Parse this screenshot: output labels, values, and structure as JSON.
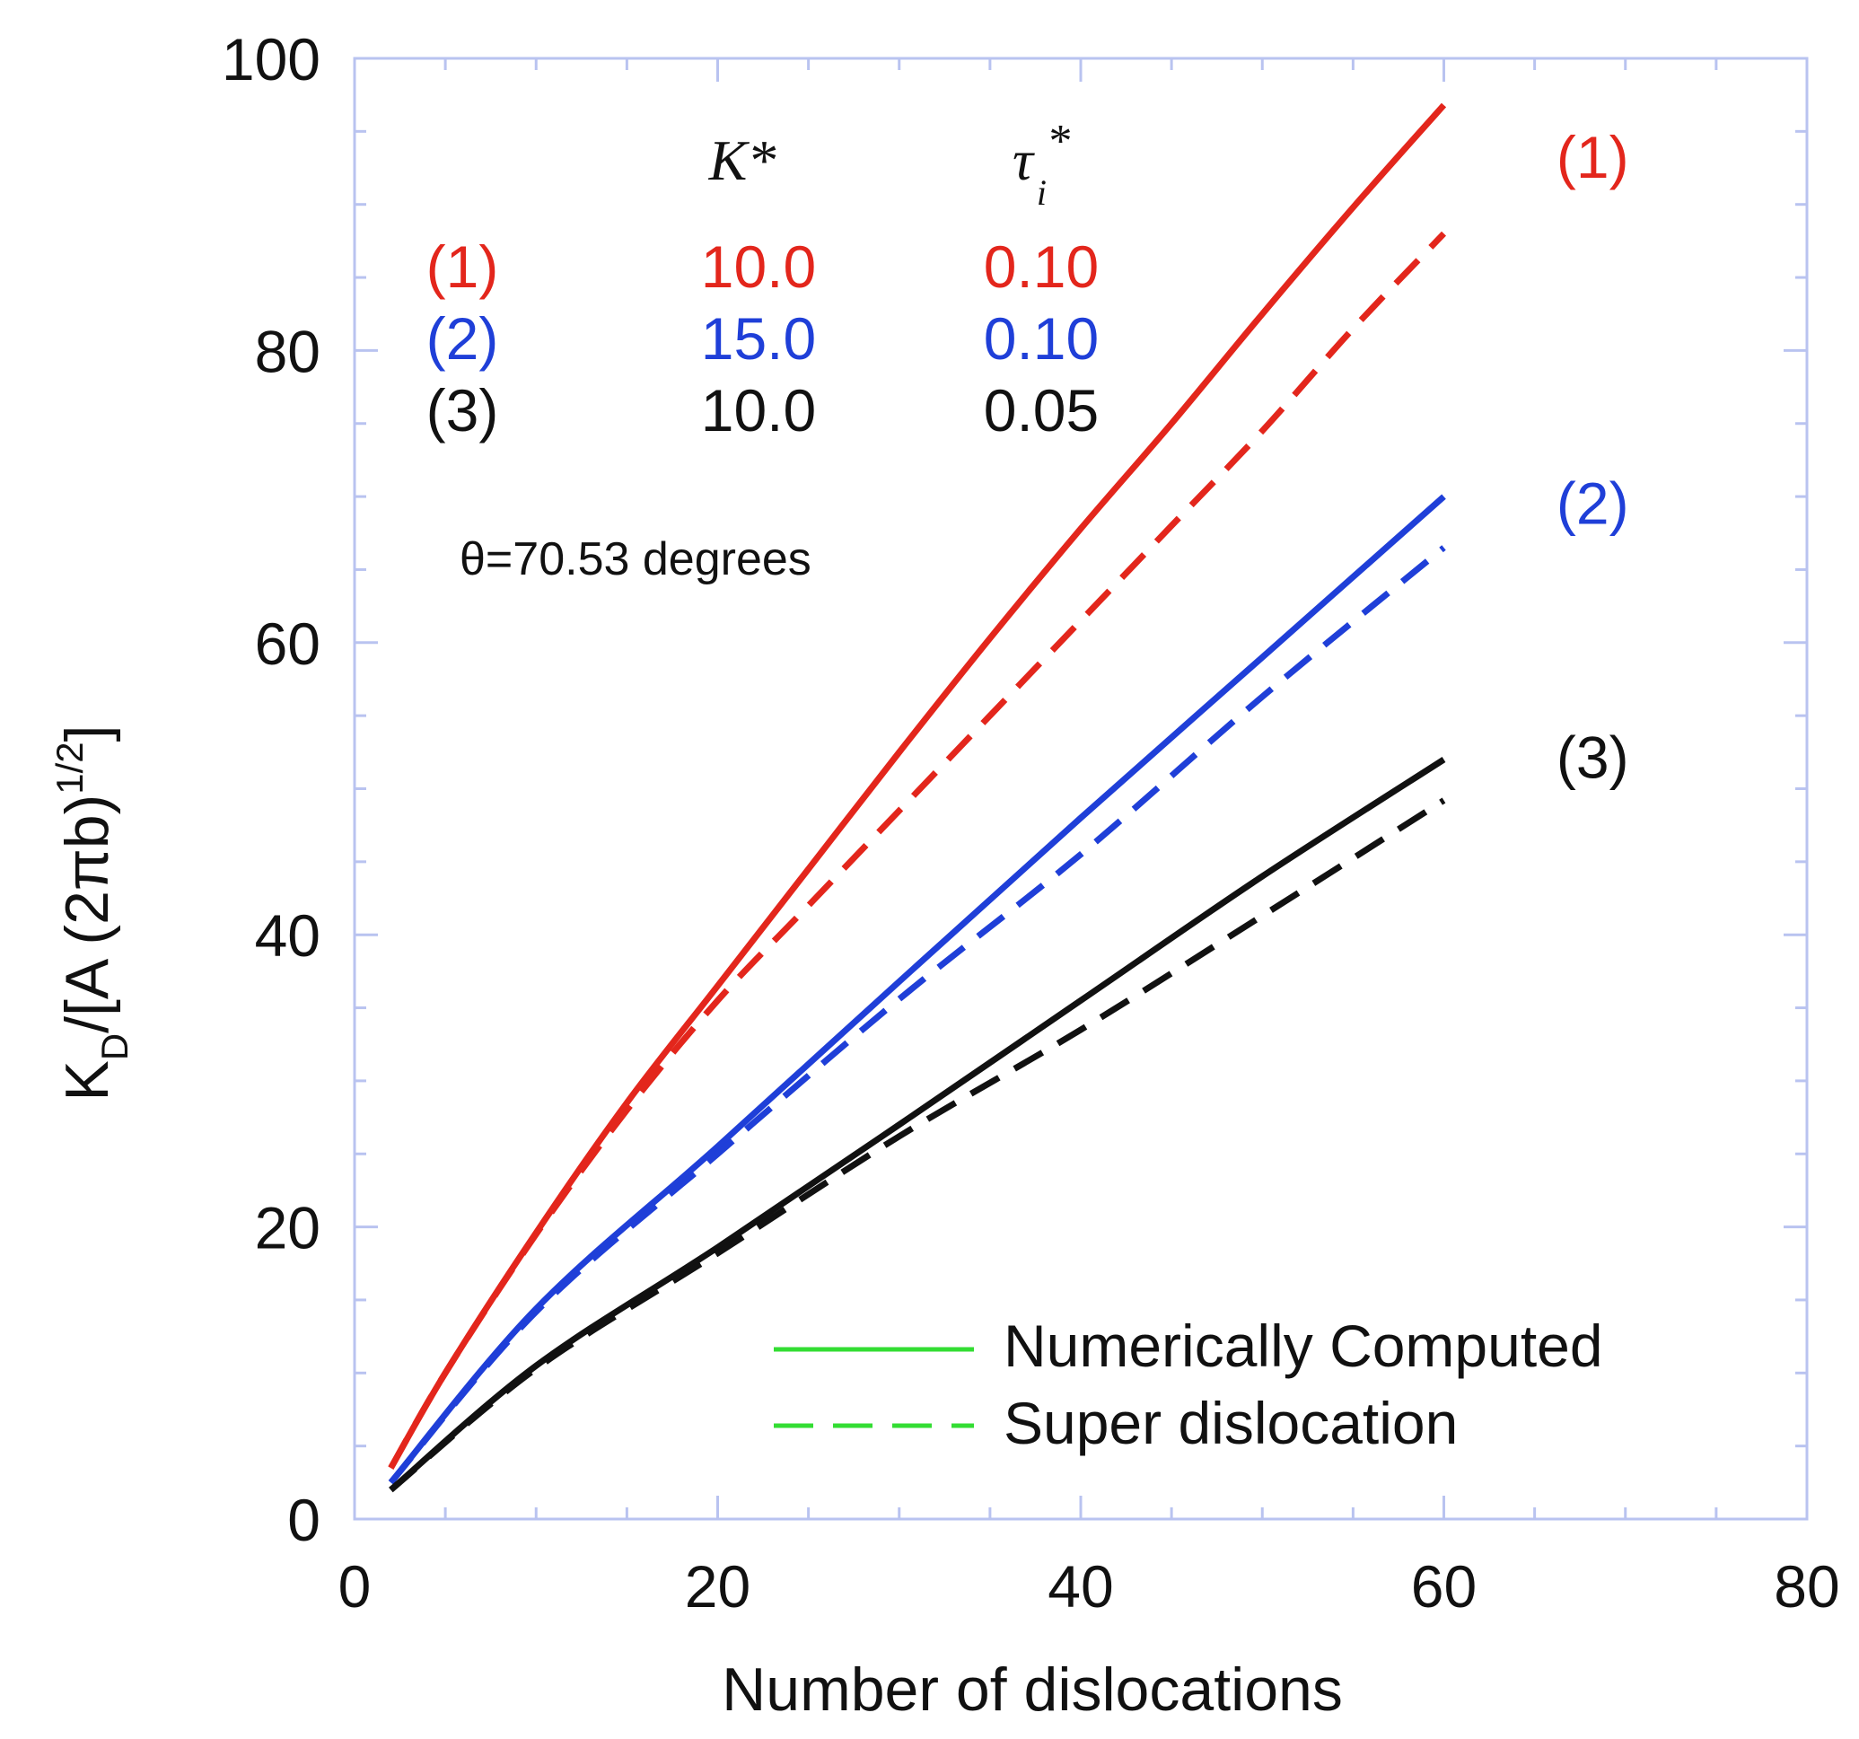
{
  "chart_data": {
    "type": "line",
    "xlabel": "Number of dislocations",
    "ylabel": {
      "main": "K",
      "sub": "D",
      "rest": "/[A (2πb)",
      "sup": "1/2",
      "close": "]"
    },
    "xlim": [
      0,
      80
    ],
    "ylim": [
      0,
      100
    ],
    "x_ticks": [
      "0",
      "20",
      "40",
      "60",
      "80"
    ],
    "y_ticks": [
      "0",
      "20",
      "40",
      "60",
      "80",
      "100"
    ],
    "grid": false,
    "colors": {
      "c1": "#e3261c",
      "c2": "#1f3fd8",
      "c3": "#111111",
      "legend": "#33dd33",
      "frame": "#b9c3f0"
    },
    "param_table": {
      "headers": {
        "k": "K*",
        "tau_main": "τ",
        "tau_sub": "i",
        "tau_sup": "*"
      },
      "rows": [
        {
          "label": "(1)",
          "k": "10.0",
          "tau": "0.10",
          "color": "#e3261c"
        },
        {
          "label": "(2)",
          "k": "15.0",
          "tau": "0.10",
          "color": "#1f3fd8"
        },
        {
          "label": "(3)",
          "k": "10.0",
          "tau": "0.05",
          "color": "#111111"
        }
      ]
    },
    "angle_note": "θ=70.53 degrees",
    "legend": {
      "position": "bottom-right",
      "items": [
        {
          "label": "Numerically Computed",
          "style": "solid"
        },
        {
          "label": "Super dislocation",
          "style": "dashed"
        }
      ]
    },
    "series": [
      {
        "name": "(1)",
        "style": "solid",
        "color": "#e3261c",
        "x": [
          2,
          5,
          10,
          15,
          20,
          25,
          30,
          35,
          40,
          45,
          50,
          55,
          60
        ],
        "y": [
          3.5,
          10,
          19.6,
          28.5,
          36.5,
          44.5,
          52.5,
          60.3,
          67.8,
          75,
          82.5,
          89.8,
          96.8
        ]
      },
      {
        "name": "(1)",
        "style": "dashed",
        "color": "#e3261c",
        "x": [
          2,
          5,
          10,
          15,
          20,
          25,
          30,
          35,
          40,
          45,
          50,
          55,
          60
        ],
        "y": [
          3.5,
          10,
          19.5,
          28,
          35.5,
          42,
          48.5,
          55,
          61.5,
          68,
          74.5,
          81.5,
          88
        ]
      },
      {
        "name": "(2)",
        "style": "solid",
        "color": "#1f3fd8",
        "x": [
          2,
          10,
          20,
          30,
          40,
          50,
          60
        ],
        "y": [
          2.5,
          14.4,
          25.5,
          36.8,
          48,
          59,
          70
        ]
      },
      {
        "name": "(2)",
        "style": "dashed",
        "color": "#1f3fd8",
        "x": [
          2,
          10,
          20,
          30,
          40,
          50,
          60
        ],
        "y": [
          2.5,
          14.2,
          25,
          35.6,
          45.5,
          56.3,
          66.5
        ]
      },
      {
        "name": "(3)",
        "style": "solid",
        "color": "#111111",
        "x": [
          2,
          10,
          20,
          30,
          40,
          50,
          60
        ],
        "y": [
          2,
          10.5,
          18.6,
          27,
          35.5,
          44,
          52
        ]
      },
      {
        "name": "(3)",
        "style": "dashed",
        "color": "#111111",
        "x": [
          2,
          10,
          20,
          30,
          40,
          50,
          60
        ],
        "y": [
          2,
          10.3,
          18.2,
          26.2,
          33.5,
          41.3,
          49.2
        ]
      }
    ],
    "curve_labels": [
      {
        "text": "(1)",
        "x": 66.2,
        "y": 93.3,
        "color": "#e3261c"
      },
      {
        "text": "(2)",
        "x": 66.2,
        "y": 69.6,
        "color": "#1f3fd8"
      },
      {
        "text": "(3)",
        "x": 66.2,
        "y": 52.2,
        "color": "#111111"
      }
    ]
  }
}
